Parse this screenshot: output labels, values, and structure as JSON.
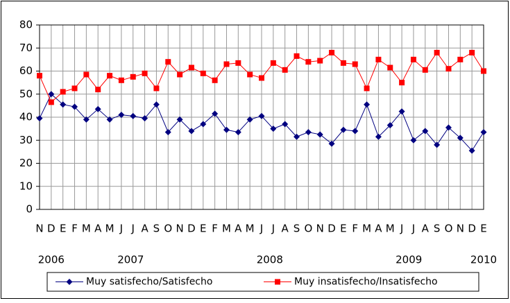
{
  "chart_data": {
    "type": "line",
    "categories": [
      "N",
      "D",
      "E",
      "F",
      "M",
      "A",
      "M",
      "J",
      "J",
      "A",
      "S",
      "O",
      "N",
      "D",
      "E",
      "F",
      "M",
      "A",
      "M",
      "J",
      "J",
      "A",
      "S",
      "O",
      "N",
      "D",
      "E",
      "F",
      "M",
      "A",
      "M",
      "J",
      "J",
      "A",
      "S",
      "O",
      "N",
      "D",
      "E"
    ],
    "year_labels": [
      "2006",
      "2007",
      "2008",
      "2009",
      "2010"
    ],
    "series": [
      {
        "name": "Muy satisfecho/Satisfecho",
        "color": "#000080",
        "marker": "diamond",
        "values": [
          39.5,
          50,
          45.5,
          44.5,
          39,
          43.5,
          39,
          41,
          40.5,
          39.5,
          45.5,
          33.5,
          39,
          34,
          37,
          41.5,
          34.5,
          33.5,
          39,
          40.5,
          35,
          37,
          31.5,
          33.5,
          32.5,
          28.5,
          34.5,
          34,
          45.5,
          31.5,
          36.5,
          42.5,
          30,
          34,
          28,
          35.5,
          31,
          25.5,
          33.5
        ]
      },
      {
        "name": "Muy insatisfecho/Insatisfecho",
        "color": "#ff0000",
        "marker": "square",
        "values": [
          58,
          46.5,
          51,
          52.5,
          58.5,
          52,
          58,
          56,
          57.5,
          59,
          52.5,
          64,
          58.5,
          61.5,
          59,
          56,
          63,
          63.5,
          58.5,
          57,
          63.5,
          60.5,
          66.5,
          64,
          64.5,
          68,
          63.5,
          63,
          52.5,
          65,
          61.5,
          55,
          65,
          60.5,
          68,
          61,
          65,
          68,
          60
        ]
      }
    ],
    "ylim": [
      0,
      80
    ],
    "yticks": [
      0,
      10,
      20,
      30,
      40,
      50,
      60,
      70,
      80
    ],
    "grid": true,
    "legend": "bottom"
  }
}
